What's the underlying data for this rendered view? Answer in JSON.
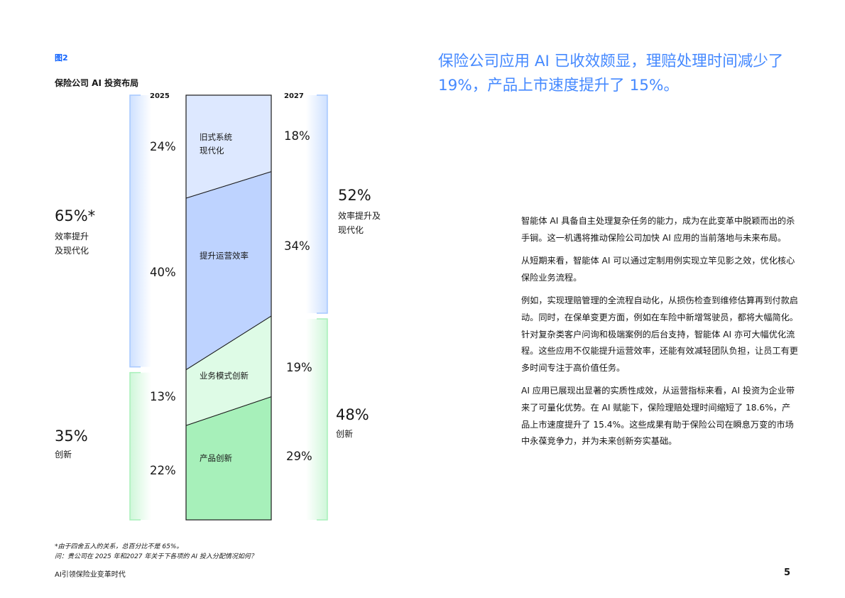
{
  "figure": {
    "label": "图2",
    "title": "保险公司 AI 投资布局",
    "year_left": "2025",
    "year_right": "2027"
  },
  "chart_data": {
    "type": "bar",
    "subtype": "stacked-100",
    "title": "保险公司 AI 投资布局",
    "categories": [
      "2025",
      "2027"
    ],
    "series": [
      {
        "name": "产品创新",
        "values": [
          22,
          29
        ],
        "color": "#a7f0ba"
      },
      {
        "name": "业务模式创新",
        "values": [
          13,
          19
        ],
        "color": "#defbe6"
      },
      {
        "name": "提升运营效率",
        "values": [
          40,
          34
        ],
        "color": "#bed3ff"
      },
      {
        "name": "旧式系统现代化",
        "values": [
          24,
          18
        ],
        "color": "#dde8ff"
      }
    ],
    "value_labels_2025": [
      "22%",
      "13%",
      "40%",
      "24%"
    ],
    "value_labels_2027": [
      "29%",
      "19%",
      "34%",
      "18%"
    ],
    "groups": {
      "left": [
        {
          "pct": "65%*",
          "label_lines": [
            "效率提升",
            "及现代化"
          ],
          "color": "#a6c8ff"
        },
        {
          "pct": "35%",
          "label_lines": [
            "创新"
          ],
          "color": "#a7f0ba"
        }
      ],
      "right": [
        {
          "pct": "52%",
          "label_lines": [
            "效率提升及",
            "现代化"
          ],
          "color": "#a6c8ff"
        },
        {
          "pct": "48%",
          "label_lines": [
            "创新"
          ],
          "color": "#a7f0ba"
        }
      ]
    },
    "segment_labels": [
      [
        "旧式系统",
        "现代化"
      ],
      [
        "提升运营效率"
      ],
      [
        "业务模式创新"
      ],
      [
        "产品创新"
      ]
    ],
    "ylim": [
      0,
      100
    ]
  },
  "headline": "保险公司应用 AI 已收效颇显，理赔处理时间减少了 19%，产品上市速度提升了 15%。",
  "body": [
    "智能体 AI 具备自主处理复杂任务的能力，成为在此变革中脱颖而出的杀手锏。这一机遇将推动保险公司加快 AI 应用的当前落地与未来布局。",
    "从短期来看，智能体 AI 可以通过定制用例实现立竿见影之效，优化核心保险业务流程。",
    "例如，实现理赔管理的全流程自动化，从损伤检查到维修估算再到付款启动。同时，在保单变更方面，例如在车险中新增驾驶员，都将大幅简化。针对复杂类客户问询和极端案例的后台支持，智能体 AI 亦可大幅优化流程。这些应用不仅能提升运营效率，还能有效减轻团队负担，让员工有更多时间专注于高价值任务。",
    "AI 应用已展现出显著的实质性成效，从运营指标来看，AI 投资为企业带来了可量化优势。在 AI 赋能下，保险理赔处理时间缩短了 18.6%，产品上市速度提升了 15.4%。这些成果有助于保险公司在瞬息万变的市场中永葆竞争力，并为未来创新夯实基础。"
  ],
  "footnotes": {
    "note": "*由于四舍五入的关系，总百分比不是 65%。",
    "question": "问：贵公司在 2025 年和2027 年关于下各项的 AI 投入分配情况如何？"
  },
  "footer": {
    "title": "AI引领保险业变革时代",
    "page": "5"
  }
}
